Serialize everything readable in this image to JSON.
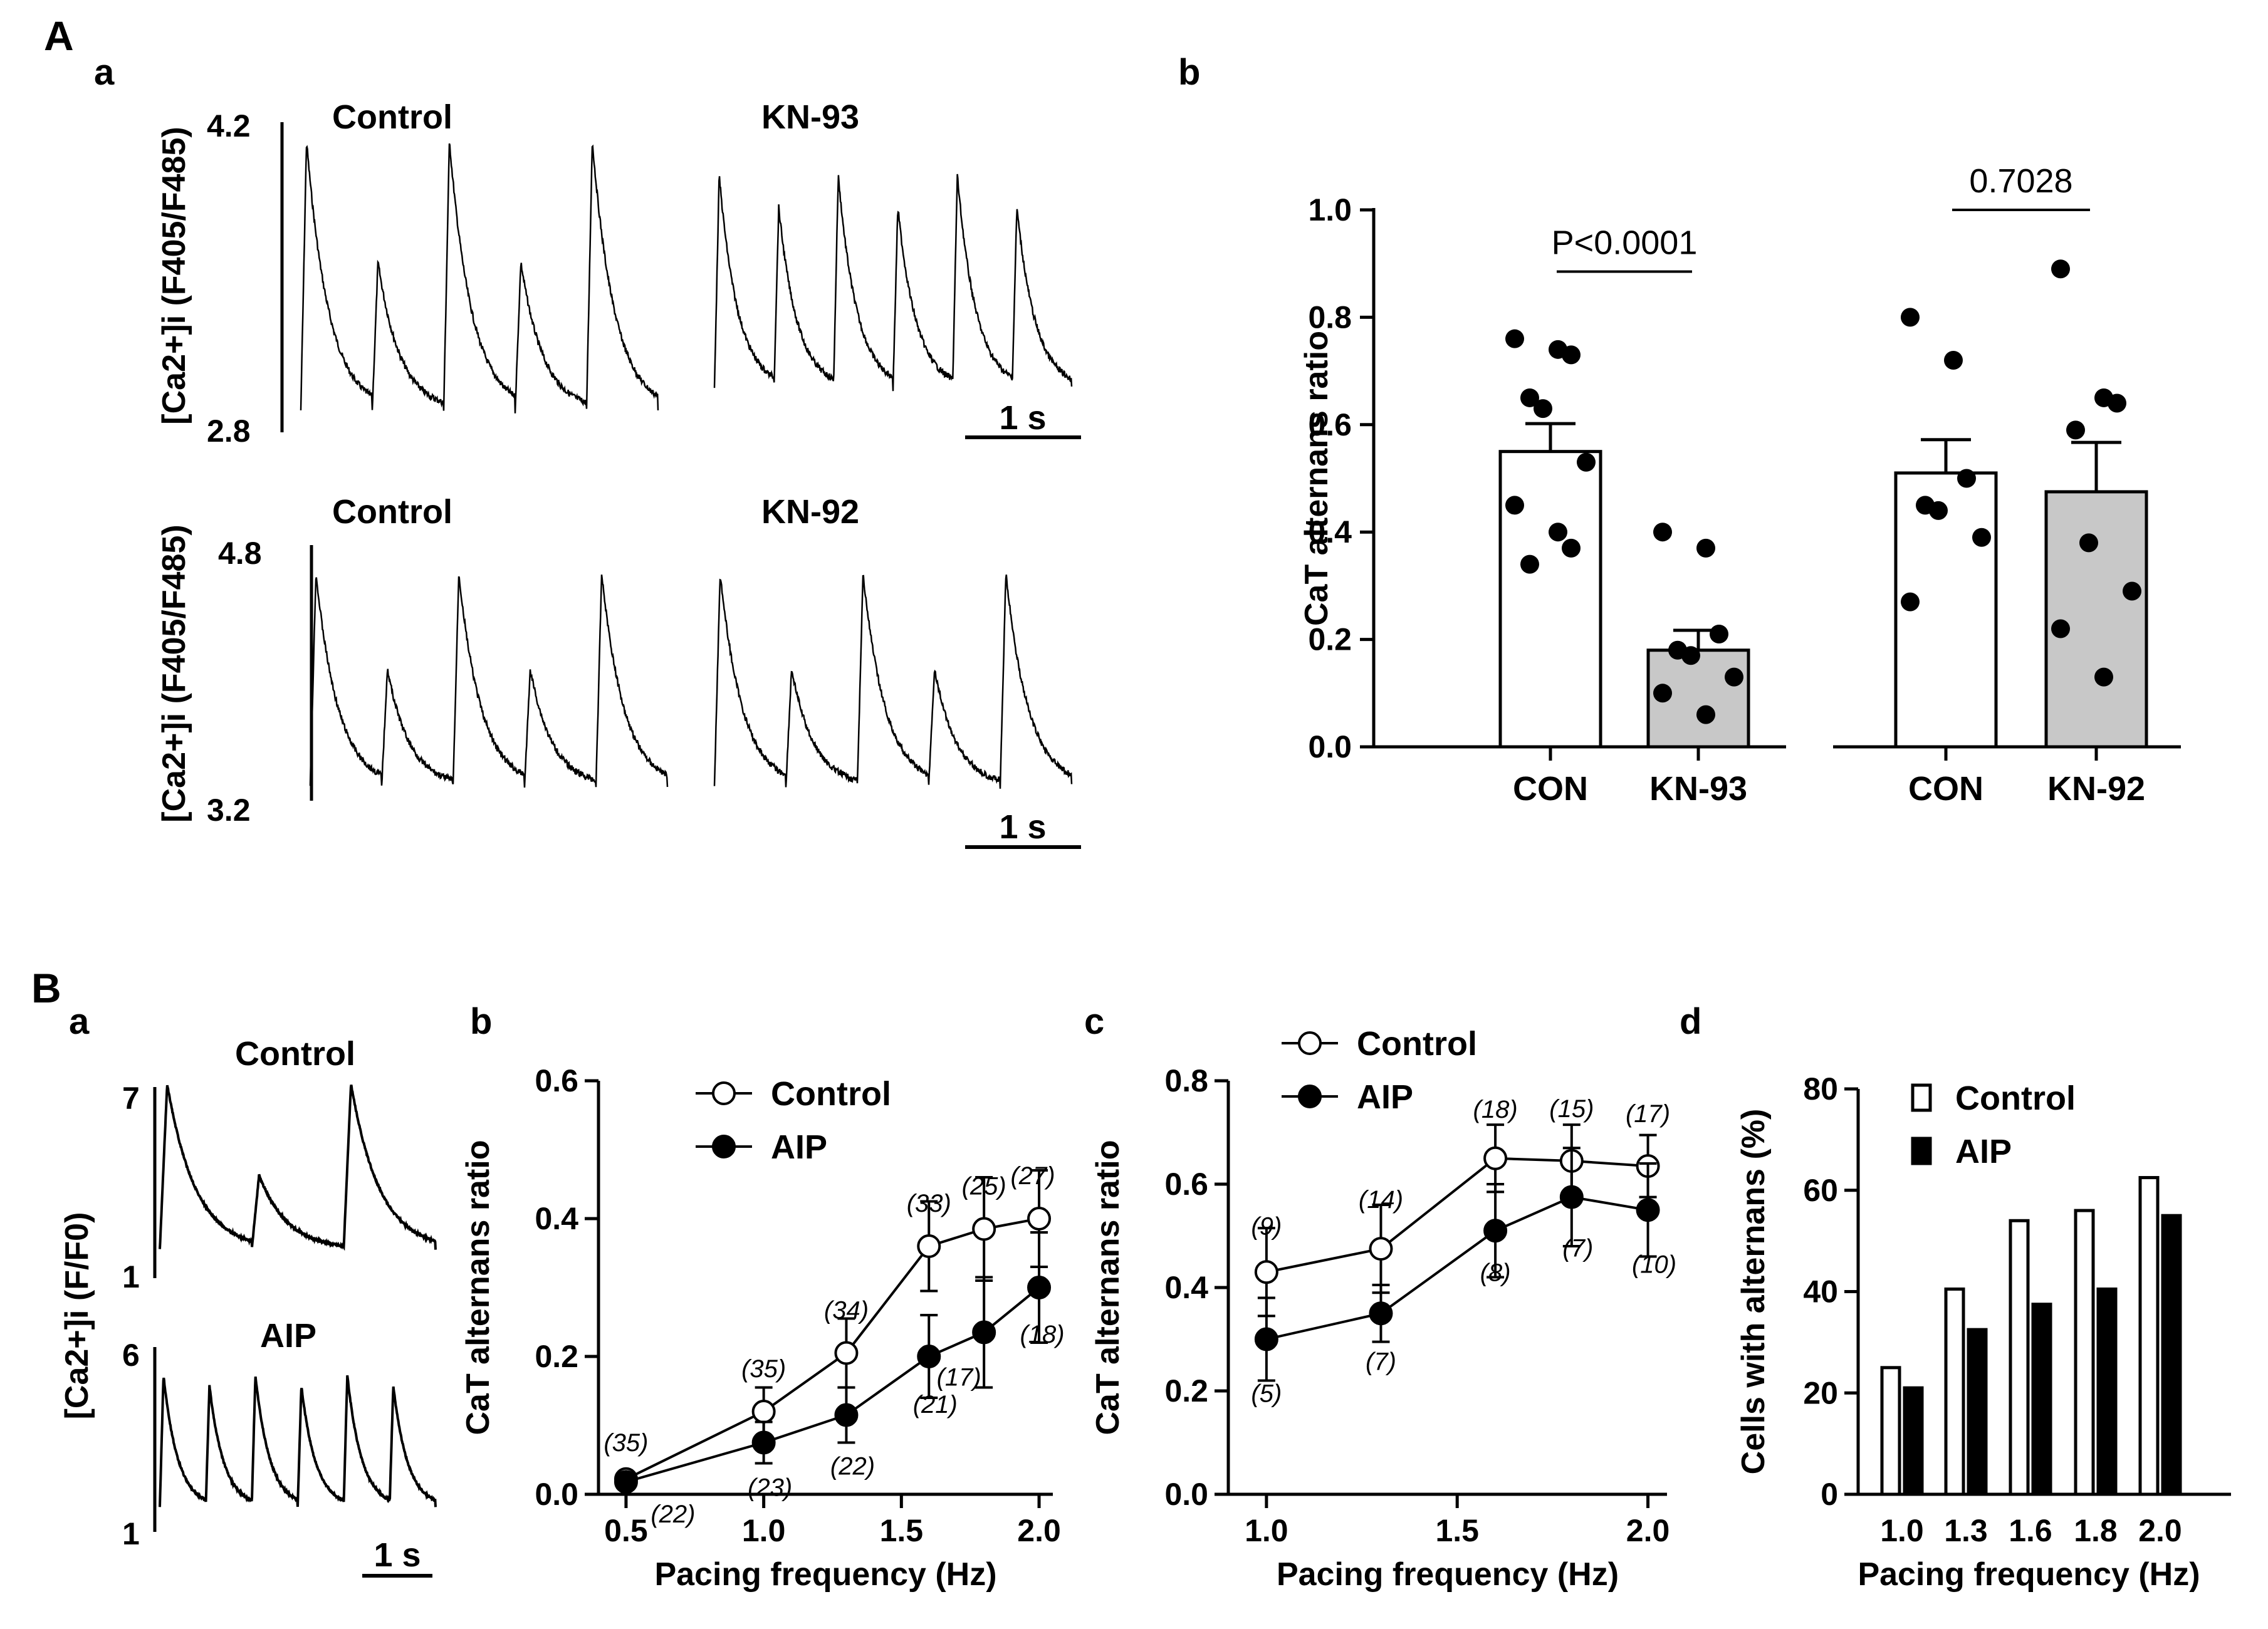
{
  "panel_labels": {
    "A": "A",
    "Aa": "a",
    "Ab": "b",
    "B": "B",
    "Ba": "a",
    "Bb": "b",
    "Bc": "c",
    "Bd": "d"
  },
  "traces": {
    "Aa_top": {
      "titles": [
        "Control",
        "KN-93"
      ],
      "ytop": "4.2",
      "ybot": "2.8",
      "ylabel": "[Ca2+]i (F405/F485)",
      "scalebar": "1 s"
    },
    "Aa_bottom": {
      "titles": [
        "Control",
        "KN-92"
      ],
      "ytop": "4.8",
      "ybot": "3.2",
      "ylabel": "[Ca2+]i (F405/F485)",
      "scalebar": "1 s"
    },
    "Ba": {
      "titles": [
        "Control",
        "AIP"
      ],
      "ytop1": "7",
      "ybot1": "1",
      "ytop2": "6",
      "ybot2": "1",
      "ylabel": "[Ca2+]i (F/F0)",
      "scalebar": "1 s"
    }
  },
  "chart_data": [
    {
      "id": "Ab",
      "type": "bar",
      "ylabel": "CaT alternans ratio",
      "ylim": [
        0,
        1.0
      ],
      "yticks": [
        "0.0",
        "0.2",
        "0.4",
        "0.6",
        "0.8",
        "1.0"
      ],
      "categories": [
        "CON",
        "KN-93",
        "CON",
        "KN-92"
      ],
      "values": [
        0.55,
        0.18,
        0.51,
        0.475
      ],
      "sem": [
        0.052,
        0.037,
        0.062,
        0.092
      ],
      "fills": [
        "#ffffff",
        "#c8c8c8",
        "#ffffff",
        "#c8c8c8"
      ],
      "points": [
        [
          0.76,
          0.74,
          0.73,
          0.65,
          0.63,
          0.53,
          0.45,
          0.4,
          0.37,
          0.34
        ],
        [
          0.4,
          0.37,
          0.21,
          0.18,
          0.17,
          0.13,
          0.1,
          0.06
        ],
        [
          0.8,
          0.72,
          0.5,
          0.45,
          0.44,
          0.39,
          0.27
        ],
        [
          0.89,
          0.65,
          0.64,
          0.59,
          0.38,
          0.29,
          0.22,
          0.13
        ]
      ],
      "comparisons": [
        {
          "from": 0,
          "to": 1,
          "label": "P<0.0001",
          "y": 0.885
        },
        {
          "from": 2,
          "to": 3,
          "label": "0.7028",
          "y": 1.0
        }
      ]
    },
    {
      "id": "Bb",
      "type": "line",
      "xlabel": "Pacing frequency (Hz)",
      "ylabel": "CaT alternans ratio",
      "xlim": [
        0.4,
        2.05
      ],
      "ylim": [
        0,
        0.6
      ],
      "xticks": [
        "0.5",
        "1.0",
        "1.5",
        "2.0"
      ],
      "yticks": [
        "0.0",
        "0.2",
        "0.4",
        "0.6"
      ],
      "series": [
        {
          "name": "Control",
          "x": [
            0.5,
            1.0,
            1.3,
            1.6,
            1.8,
            2.0
          ],
          "values": [
            0.022,
            0.12,
            0.205,
            0.36,
            0.385,
            0.4
          ],
          "err": [
            0.005,
            0.035,
            0.05,
            0.065,
            0.075,
            0.07
          ],
          "n": [
            "(35)",
            "(35)",
            "(34)",
            "(33)",
            "(25)",
            "(27)"
          ],
          "filled": false
        },
        {
          "name": "AIP",
          "x": [
            0.5,
            1.0,
            1.3,
            1.6,
            1.8,
            2.0
          ],
          "values": [
            0.018,
            0.075,
            0.115,
            0.2,
            0.235,
            0.3
          ],
          "err": [
            0.005,
            0.03,
            0.04,
            0.06,
            0.08,
            0.08
          ],
          "n": [
            "(22)",
            "(23)",
            "(22)",
            "(21)",
            "(17)",
            "(18)"
          ],
          "filled": true
        }
      ]
    },
    {
      "id": "Bc",
      "type": "line",
      "xlabel": "Pacing frequency (Hz)",
      "ylabel": "CaT alternans ratio",
      "xlim": [
        0.9,
        2.05
      ],
      "ylim": [
        0,
        0.8
      ],
      "xticks": [
        "1.0",
        "1.5",
        "2.0"
      ],
      "yticks": [
        "0.0",
        "0.2",
        "0.4",
        "0.6",
        "0.8"
      ],
      "series": [
        {
          "name": "Control",
          "x": [
            1.0,
            1.3,
            1.6,
            1.8,
            2.0
          ],
          "values": [
            0.43,
            0.475,
            0.65,
            0.645,
            0.635
          ],
          "err": [
            0.085,
            0.085,
            0.065,
            0.07,
            0.06
          ],
          "n": [
            "(9)",
            "(14)",
            "(18)",
            "(15)",
            "(17)"
          ],
          "filled": false
        },
        {
          "name": "AIP",
          "x": [
            1.0,
            1.3,
            1.6,
            1.8,
            2.0
          ],
          "values": [
            0.3,
            0.35,
            0.51,
            0.575,
            0.55
          ],
          "err": [
            0.08,
            0.055,
            0.09,
            0.095,
            0.09
          ],
          "n": [
            "(5)",
            "(7)",
            "(8)",
            "(7)",
            "(10)"
          ],
          "filled": true
        }
      ]
    },
    {
      "id": "Bd",
      "type": "bar",
      "xlabel": "Pacing frequency (Hz)",
      "ylabel": "Cells with alternans (%)",
      "ylim": [
        0,
        80
      ],
      "yticks": [
        "0",
        "20",
        "40",
        "60",
        "80"
      ],
      "categories": [
        "1.0",
        "1.3",
        "1.6",
        "1.8",
        "2.0"
      ],
      "series": [
        {
          "name": "Control",
          "values": [
            25,
            40.5,
            54,
            56,
            62.5
          ],
          "fill": "#ffffff"
        },
        {
          "name": "AIP",
          "values": [
            21,
            32.5,
            37.5,
            40.5,
            55
          ],
          "fill": "#000000"
        }
      ]
    }
  ]
}
